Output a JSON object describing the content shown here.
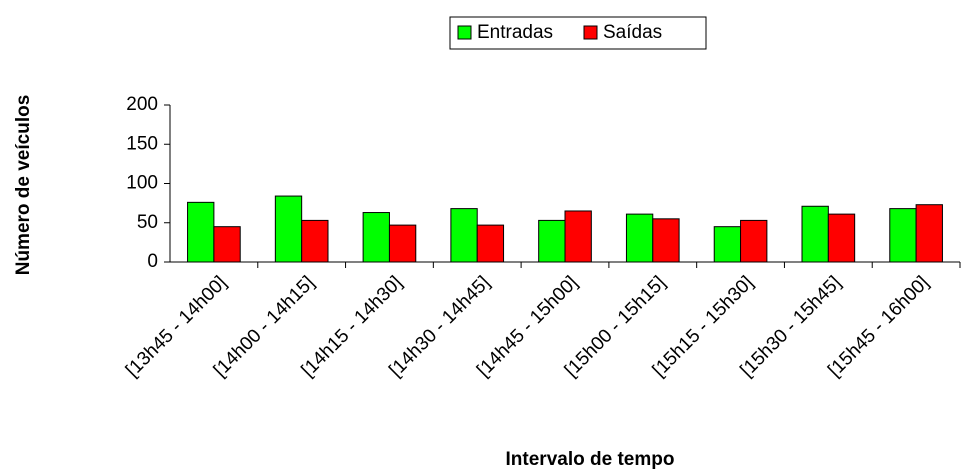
{
  "chart_data": {
    "type": "bar",
    "x_label": "Intervalo de tempo",
    "y_label": "Número de veículos",
    "categories": [
      "[13h45 - 14h00]",
      "[14h00 - 14h15]",
      "[14h15 - 14h30]",
      "[14h30 - 14h45]",
      "[14h45 - 15h00]",
      "[15h00 - 15h15]",
      "[15h15 - 15h30]",
      "[15h30 - 15h45]",
      "[15h45 - 16h00]"
    ],
    "series": [
      {
        "name": "Entradas",
        "color": "#00ff00",
        "values": [
          76,
          84,
          63,
          68,
          53,
          61,
          45,
          71,
          68
        ]
      },
      {
        "name": "Saídas",
        "color": "#ff0000",
        "values": [
          45,
          53,
          47,
          47,
          65,
          55,
          53,
          61,
          73
        ]
      }
    ],
    "ylim": [
      0,
      200
    ],
    "yticks": [
      0,
      50,
      100,
      150,
      200
    ],
    "grid": false,
    "legend": "top"
  }
}
